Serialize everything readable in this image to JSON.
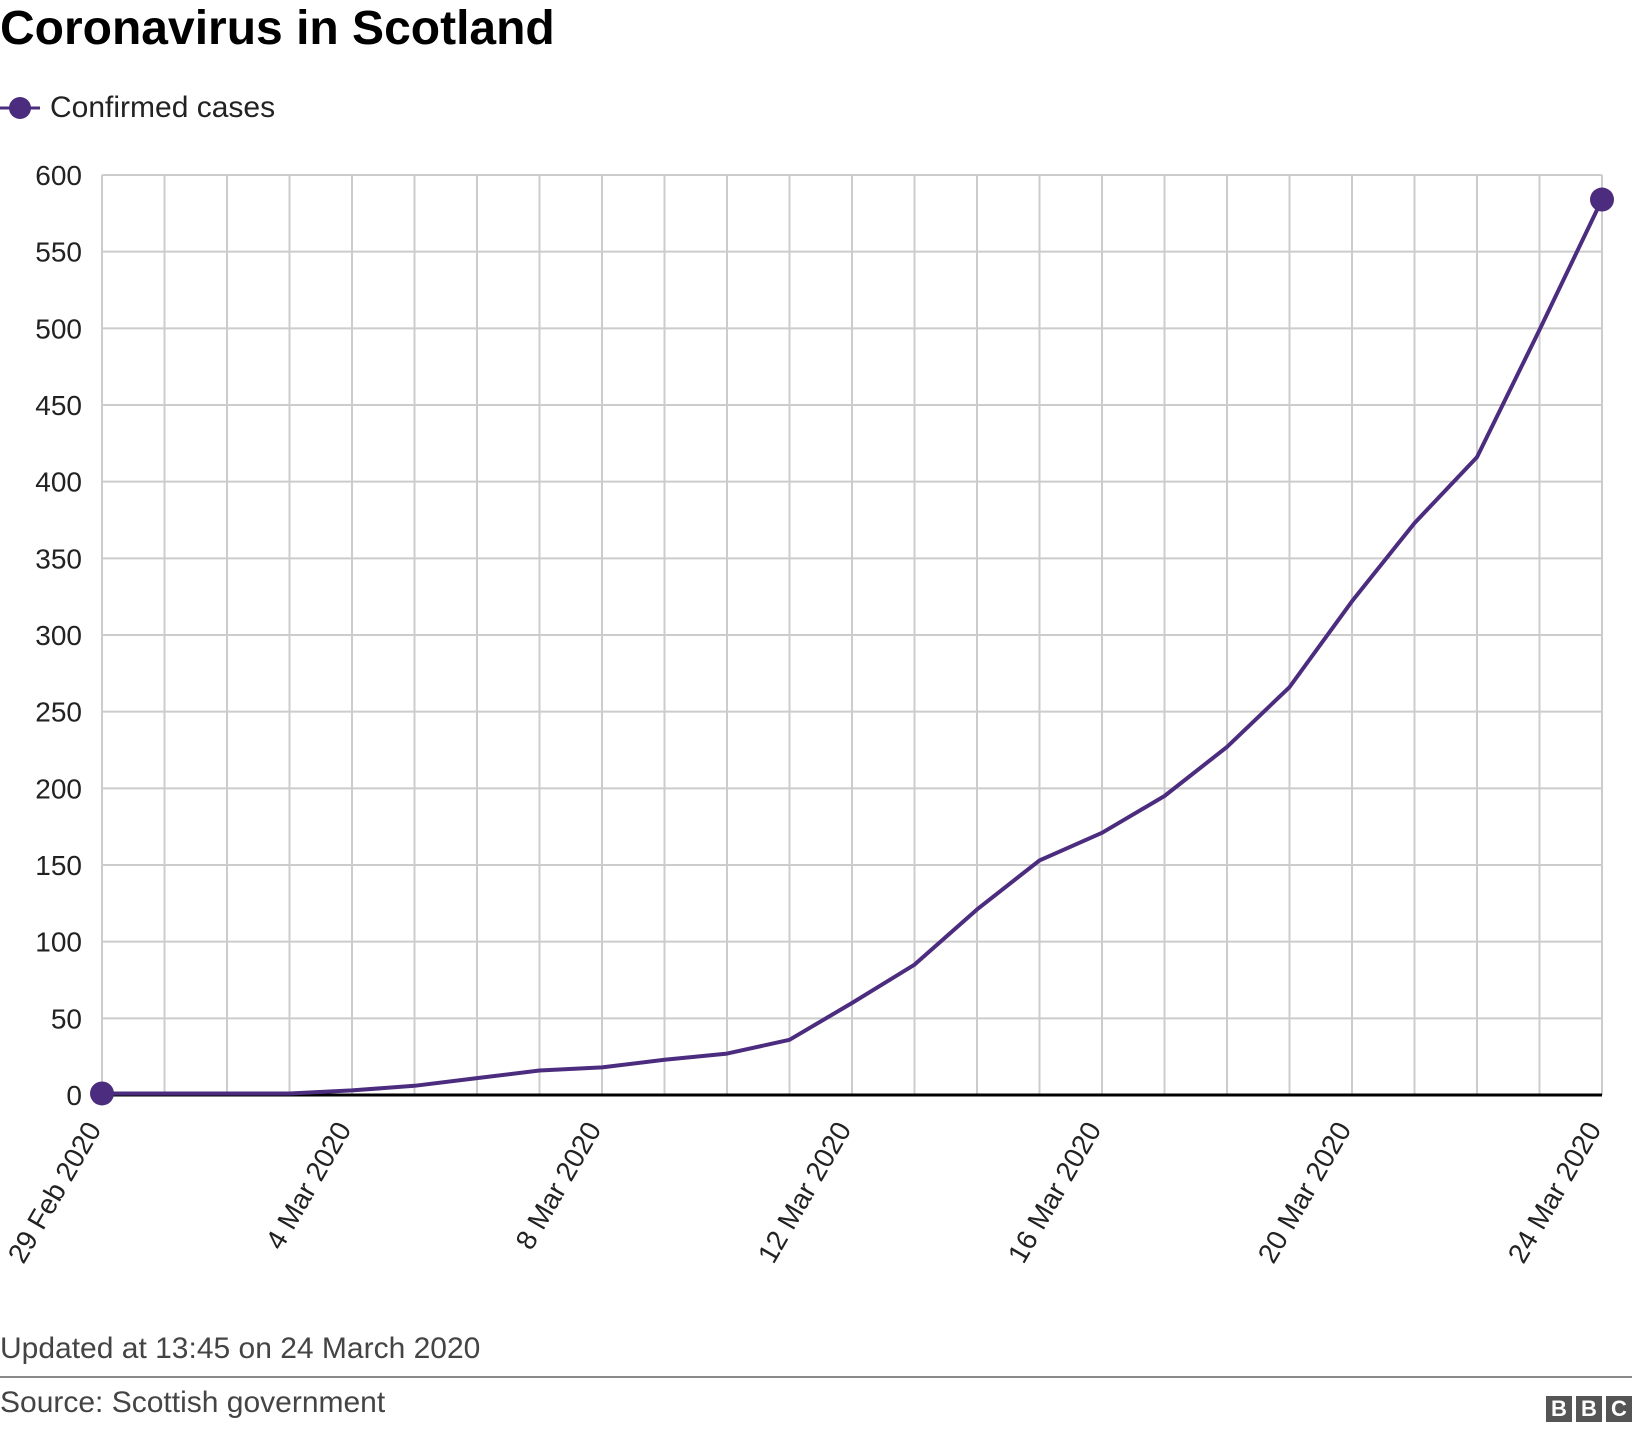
{
  "header": {
    "title": "Coronavirus in Scotland"
  },
  "footer": {
    "updated": "Updated at 13:45 on 24 March 2020",
    "source": "Source: Scottish government",
    "logo_letters": [
      "B",
      "B",
      "C"
    ]
  },
  "colors": {
    "series": "#4b2c7e",
    "grid": "#cccccc",
    "axis": "#000000"
  },
  "chart_data": {
    "type": "line",
    "title": "Coronavirus in Scotland",
    "xlabel": "",
    "ylabel": "",
    "x_start_date": "29 Feb 2020",
    "x": [
      "29 Feb 2020",
      "1 Mar 2020",
      "2 Mar 2020",
      "3 Mar 2020",
      "4 Mar 2020",
      "5 Mar 2020",
      "6 Mar 2020",
      "7 Mar 2020",
      "8 Mar 2020",
      "9 Mar 2020",
      "10 Mar 2020",
      "11 Mar 2020",
      "12 Mar 2020",
      "13 Mar 2020",
      "14 Mar 2020",
      "15 Mar 2020",
      "16 Mar 2020",
      "17 Mar 2020",
      "18 Mar 2020",
      "19 Mar 2020",
      "20 Mar 2020",
      "21 Mar 2020",
      "22 Mar 2020",
      "23 Mar 2020",
      "24 Mar 2020"
    ],
    "x_tick_labels": [
      "29 Feb 2020",
      "4 Mar 2020",
      "8 Mar 2020",
      "12 Mar 2020",
      "16 Mar 2020",
      "20 Mar 2020",
      "24 Mar 2020"
    ],
    "x_tick_index": [
      0,
      4,
      8,
      12,
      16,
      20,
      24
    ],
    "ylim": [
      0,
      600
    ],
    "y_ticks": [
      0,
      50,
      100,
      150,
      200,
      250,
      300,
      350,
      400,
      450,
      500,
      550,
      600
    ],
    "grid": true,
    "legend_position": "top-left",
    "series": [
      {
        "name": "Confirmed cases",
        "color": "#4b2c7e",
        "values": [
          1,
          1,
          1,
          1,
          3,
          6,
          11,
          16,
          18,
          23,
          27,
          36,
          60,
          85,
          121,
          153,
          171,
          195,
          227,
          266,
          322,
          373,
          416,
          499,
          584
        ]
      }
    ]
  }
}
